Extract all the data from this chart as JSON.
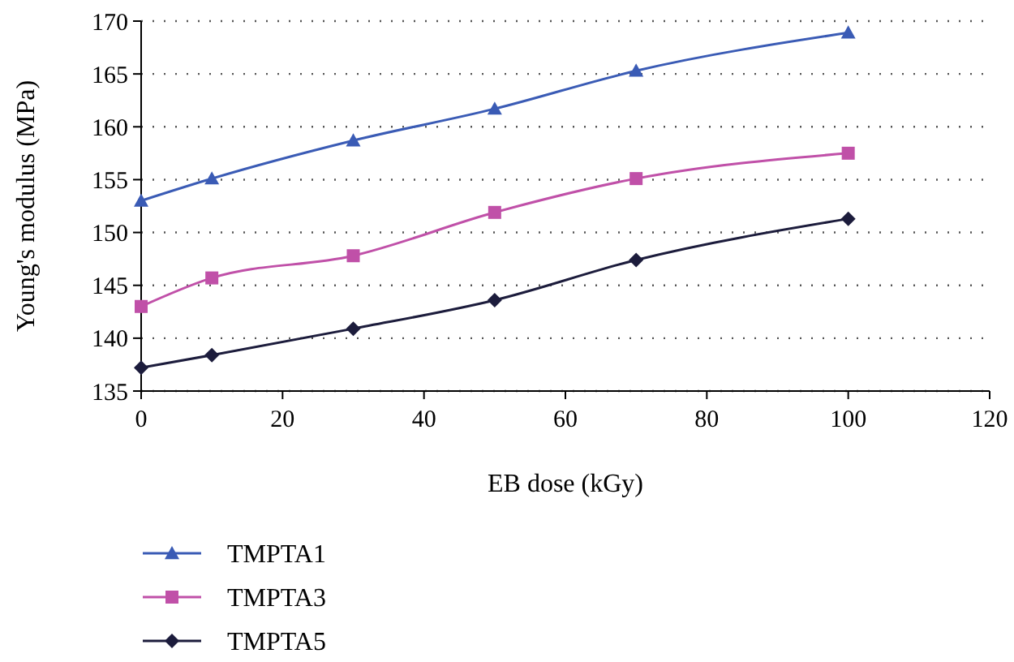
{
  "chart_data": {
    "type": "line",
    "xlabel": "EB dose (kGy)",
    "ylabel": "Young's modulus (MPa)",
    "xlim": [
      0,
      120
    ],
    "xticks": [
      0,
      20,
      40,
      60,
      80,
      100,
      120
    ],
    "ylim": [
      135,
      170
    ],
    "yticks": [
      135,
      140,
      145,
      150,
      155,
      160,
      165,
      170
    ],
    "grid": "y",
    "legend": "bottom left",
    "x": [
      0,
      10,
      30,
      50,
      70,
      100
    ],
    "series": [
      {
        "name": "TMPTA1",
        "color": "#3a5bb5",
        "marker": "triangle",
        "values": [
          153.0,
          155.1,
          158.7,
          161.7,
          165.3,
          168.9
        ]
      },
      {
        "name": "TMPTA3",
        "color": "#c050a8",
        "marker": "square",
        "values": [
          143.0,
          145.7,
          147.8,
          151.9,
          155.1,
          157.5
        ]
      },
      {
        "name": "TMPTA5",
        "color": "#1c1c3c",
        "marker": "diamond",
        "values": [
          137.2,
          138.4,
          140.9,
          143.6,
          147.4,
          151.3
        ]
      }
    ]
  }
}
